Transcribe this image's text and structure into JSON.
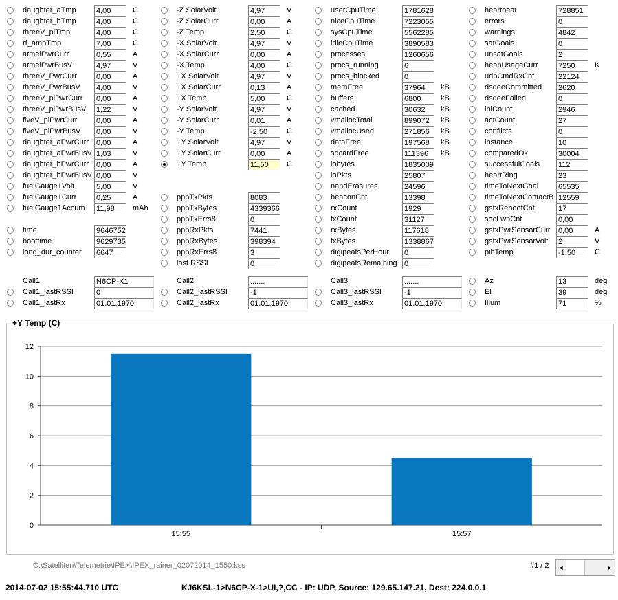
{
  "columns": [
    {
      "rows": [
        {
          "label": "daughter_aTmp",
          "value": "4,00",
          "unit": "C"
        },
        {
          "label": "daughter_bTmp",
          "value": "4,00",
          "unit": "C"
        },
        {
          "label": "threeV_plTmp",
          "value": "4,00",
          "unit": "C"
        },
        {
          "label": "rf_ampTmp",
          "value": "7,00",
          "unit": "C"
        },
        {
          "label": "atmelPwrCurr",
          "value": "0,55",
          "unit": "A"
        },
        {
          "label": "atmelPwrBusV",
          "value": "4,97",
          "unit": "V"
        },
        {
          "label": "threeV_PwrCurr",
          "value": "0,00",
          "unit": "A"
        },
        {
          "label": "threeV_PwrBusV",
          "value": "4,00",
          "unit": "V"
        },
        {
          "label": "threeV_plPwrCurr",
          "value": "0,00",
          "unit": "A"
        },
        {
          "label": "threeV_plPwrBusV",
          "value": "1,22",
          "unit": "V"
        },
        {
          "label": "fiveV_plPwrCurr",
          "value": "0,00",
          "unit": "A"
        },
        {
          "label": "fiveV_plPwrBusV",
          "value": "0,00",
          "unit": "V"
        },
        {
          "label": "daughter_aPwrCurr",
          "value": "0,00",
          "unit": "A"
        },
        {
          "label": "daughter_aPwrBusV",
          "value": "1,03",
          "unit": "V"
        },
        {
          "label": "daughter_bPwrCurr",
          "value": "0,00",
          "unit": "A"
        },
        {
          "label": "daughter_bPwrBusV",
          "value": "0,00",
          "unit": "V"
        },
        {
          "label": "fuelGauge1Volt",
          "value": "5,00",
          "unit": "V"
        },
        {
          "label": "fuelGauge1Curr",
          "value": "0,25",
          "unit": "A"
        },
        {
          "label": "fuelGauge1Accum",
          "value": "11,98",
          "unit": "mAh"
        },
        {
          "label": "",
          "value": "",
          "unit": "",
          "blank": true
        },
        {
          "label": "time",
          "value": "9646752",
          "unit": ""
        },
        {
          "label": "boottime",
          "value": "9629735",
          "unit": ""
        },
        {
          "label": "long_dur_counter",
          "value": "6647",
          "unit": ""
        },
        {
          "label": "",
          "value": "",
          "unit": "",
          "blank": true
        },
        {
          "label": "Call1",
          "value": "N6CP-X1",
          "unit": "",
          "noradio": true,
          "wide": true
        },
        {
          "label": "Call1_lastRSSI",
          "value": "0",
          "unit": "",
          "wide": true
        },
        {
          "label": "Call1_lastRx",
          "value": "01.01.1970",
          "unit": "",
          "wide": true
        }
      ]
    },
    {
      "rows": [
        {
          "label": "-Z SolarVolt",
          "value": "4,97",
          "unit": "V"
        },
        {
          "label": "-Z SolarCurr",
          "value": "0,00",
          "unit": "A"
        },
        {
          "label": "-Z Temp",
          "value": "2,50",
          "unit": "C"
        },
        {
          "label": "-X SolarVolt",
          "value": "4,97",
          "unit": "V"
        },
        {
          "label": "-X SolarCurr",
          "value": "0,00",
          "unit": "A"
        },
        {
          "label": "-X Temp",
          "value": "4,00",
          "unit": "C"
        },
        {
          "label": "+X SolarVolt",
          "value": "4,97",
          "unit": "V"
        },
        {
          "label": "+X SolarCurr",
          "value": "0,13",
          "unit": "A"
        },
        {
          "label": "+X Temp",
          "value": "5,00",
          "unit": "C"
        },
        {
          "label": "-Y SolarVolt",
          "value": "4,97",
          "unit": "V"
        },
        {
          "label": "-Y SolarCurr",
          "value": "0,01",
          "unit": "A"
        },
        {
          "label": "-Y Temp",
          "value": "-2,50",
          "unit": "C"
        },
        {
          "label": "+Y SolarVolt",
          "value": "4,97",
          "unit": "V"
        },
        {
          "label": "+Y SolarCurr",
          "value": "0,00",
          "unit": "A"
        },
        {
          "label": "+Y Temp",
          "value": "11,50",
          "unit": "C",
          "selected": true,
          "highlight": true
        },
        {
          "label": "",
          "value": "",
          "unit": "",
          "blank": true
        },
        {
          "label": "",
          "value": "",
          "unit": "",
          "blank": true
        },
        {
          "label": "pppTxPkts",
          "value": "8083",
          "unit": ""
        },
        {
          "label": "pppTxBytes",
          "value": "4339366",
          "unit": ""
        },
        {
          "label": "pppTxErrs8",
          "value": "0",
          "unit": ""
        },
        {
          "label": "pppRxPkts",
          "value": "7441",
          "unit": ""
        },
        {
          "label": "pppRxBytes",
          "value": "398394",
          "unit": ""
        },
        {
          "label": "pppRxErrs8",
          "value": "3",
          "unit": ""
        },
        {
          "label": "last RSSI",
          "value": "0",
          "unit": ""
        },
        {
          "label": "Call2",
          "value": ".......",
          "unit": "",
          "noradio": true,
          "wide": true
        },
        {
          "label": "Call2_lastRSSI",
          "value": "-1",
          "unit": "",
          "wide": true
        },
        {
          "label": "Call2_lastRx",
          "value": "01.01.1970",
          "unit": "",
          "wide": true
        }
      ]
    },
    {
      "rows": [
        {
          "label": "userCpuTime",
          "value": "1781628",
          "unit": ""
        },
        {
          "label": "niceCpuTime",
          "value": "7223055",
          "unit": ""
        },
        {
          "label": "sysCpuTime",
          "value": "5562285",
          "unit": ""
        },
        {
          "label": "idleCpuTime",
          "value": "3890583",
          "unit": ""
        },
        {
          "label": "processes",
          "value": "1260656",
          "unit": ""
        },
        {
          "label": "procs_running",
          "value": "6",
          "unit": ""
        },
        {
          "label": "procs_blocked",
          "value": "0",
          "unit": ""
        },
        {
          "label": "memFree",
          "value": "37964",
          "unit": "kB"
        },
        {
          "label": "buffers",
          "value": "6800",
          "unit": "kB"
        },
        {
          "label": "cached",
          "value": "30632",
          "unit": "kB"
        },
        {
          "label": "vmallocTotal",
          "value": "899072",
          "unit": "kB"
        },
        {
          "label": "vmallocUsed",
          "value": "271856",
          "unit": "kB"
        },
        {
          "label": "dataFree",
          "value": "197568",
          "unit": "kB"
        },
        {
          "label": "sdcardFree",
          "value": "111396",
          "unit": "kB"
        },
        {
          "label": "lobytes",
          "value": "1835009",
          "unit": ""
        },
        {
          "label": "loPkts",
          "value": "25807",
          "unit": ""
        },
        {
          "label": "nandErasures",
          "value": "24596",
          "unit": ""
        },
        {
          "label": "beaconCnt",
          "value": "13398",
          "unit": ""
        },
        {
          "label": "rxCount",
          "value": "1929",
          "unit": ""
        },
        {
          "label": "txCount",
          "value": "31127",
          "unit": ""
        },
        {
          "label": "rxBytes",
          "value": "117618",
          "unit": ""
        },
        {
          "label": "txBytes",
          "value": "1338867",
          "unit": ""
        },
        {
          "label": "digipeatsPerHour",
          "value": "0",
          "unit": ""
        },
        {
          "label": "digipeatsRemaining",
          "value": "0",
          "unit": ""
        },
        {
          "label": "Call3",
          "value": ".......",
          "unit": "",
          "noradio": true,
          "wide": true
        },
        {
          "label": "Call3_lastRSSI",
          "value": "-1",
          "unit": "",
          "wide": true
        },
        {
          "label": "Call3_lastRx",
          "value": "01.01.1970",
          "unit": "",
          "wide": true
        }
      ]
    },
    {
      "rows": [
        {
          "label": "heartbeat",
          "value": "728851",
          "unit": ""
        },
        {
          "label": "errors",
          "value": "0",
          "unit": ""
        },
        {
          "label": "warnings",
          "value": "4842",
          "unit": ""
        },
        {
          "label": "satGoals",
          "value": "0",
          "unit": ""
        },
        {
          "label": "unsatGoals",
          "value": "2",
          "unit": ""
        },
        {
          "label": "heapUsageCurr",
          "value": "7250",
          "unit": "K"
        },
        {
          "label": "udpCmdRxCnt",
          "value": "22124",
          "unit": ""
        },
        {
          "label": "dsqeeCommitted",
          "value": "2620",
          "unit": ""
        },
        {
          "label": "dsqeeFailed",
          "value": "0",
          "unit": ""
        },
        {
          "label": "iniCount",
          "value": "2946",
          "unit": ""
        },
        {
          "label": "actCount",
          "value": "27",
          "unit": ""
        },
        {
          "label": "conflicts",
          "value": "0",
          "unit": ""
        },
        {
          "label": "instance",
          "value": "10",
          "unit": ""
        },
        {
          "label": "comparedOk",
          "value": "30004",
          "unit": ""
        },
        {
          "label": "successfulGoals",
          "value": "112",
          "unit": ""
        },
        {
          "label": "heartRing",
          "value": "23",
          "unit": ""
        },
        {
          "label": "timeToNextGoal",
          "value": "65535",
          "unit": ""
        },
        {
          "label": "timeToNextContactB",
          "value": "12559",
          "unit": ""
        },
        {
          "label": "gstxRebootCnt",
          "value": "17",
          "unit": ""
        },
        {
          "label": "socLwnCnt",
          "value": "0,00",
          "unit": ""
        },
        {
          "label": "gstxPwrSensorCurr",
          "value": "0,00",
          "unit": "A"
        },
        {
          "label": "gstxPwrSensorVolt",
          "value": "2",
          "unit": "V"
        },
        {
          "label": "pibTemp",
          "value": "-1,50",
          "unit": "C"
        },
        {
          "label": "",
          "value": "",
          "unit": "",
          "blank": true
        },
        {
          "label": "Az",
          "value": "13",
          "unit": "deg"
        },
        {
          "label": "El",
          "value": "39",
          "unit": "deg"
        },
        {
          "label": "Illum",
          "value": "71",
          "unit": "%"
        }
      ]
    }
  ],
  "chart": {
    "title": "+Y Temp (C)"
  },
  "chart_data": {
    "type": "bar",
    "title": "+Y Temp (C)",
    "categories": [
      "15:55",
      "15:57"
    ],
    "values": [
      11.5,
      4.5
    ],
    "xlabel": "",
    "ylabel": "",
    "ylim": [
      0,
      12
    ],
    "yticks": [
      "0",
      "2",
      "4",
      "6",
      "8",
      "10",
      "12"
    ],
    "grid": true,
    "color": "#0a78c0"
  },
  "footer": {
    "file_path": "C:\\Satelliten\\Telemetrie\\IPEX\\IPEX_rainer_02072014_1550.kss",
    "page_indicator": "#1 / 2"
  },
  "scroll": {
    "left_icon": "◄",
    "right_icon": "►"
  },
  "status": {
    "timestamp": "2014-07-02 15:55:44.710 UTC",
    "message": "KJ6KSL-1>N6CP-X-1>UI,?,CC - IP: UDP, Source: 129.65.147.21, Dest: 224.0.0.1"
  }
}
